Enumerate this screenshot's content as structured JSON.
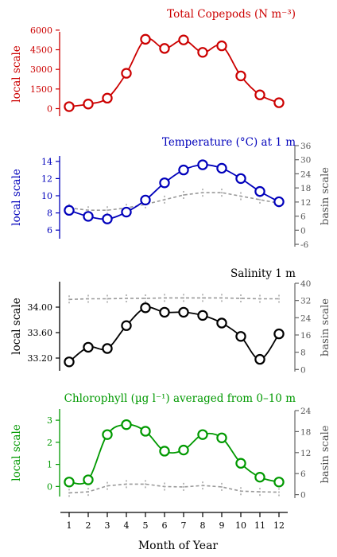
{
  "x_axis": {
    "label": "Month of Year",
    "ticks": [
      "1",
      "2",
      "3",
      "4",
      "5",
      "6",
      "7",
      "8",
      "9",
      "10",
      "11",
      "12"
    ]
  },
  "chart_data": [
    {
      "type": "line",
      "title": "Total Copepods (N m⁻³)",
      "color": "#cc0000",
      "ylabel": "local scale",
      "ylim": [
        -700,
        6600
      ],
      "y_ticks": [
        "0",
        "1500",
        "3000",
        "4500",
        "6000"
      ],
      "y_tick_values": [
        0,
        1500,
        3000,
        4500,
        6000
      ],
      "x": [
        1,
        2,
        3,
        4,
        5,
        6,
        7,
        8,
        9,
        10,
        11,
        12
      ],
      "series": [
        {
          "values": [
            150,
            350,
            800,
            2700,
            5300,
            4600,
            5250,
            4300,
            4800,
            2500,
            1050,
            450
          ]
        }
      ]
    },
    {
      "type": "line",
      "title": "Temperature (°C) at 1 m",
      "color": "#0000bb",
      "ylabel": "local scale",
      "ylabel2": "basin scale",
      "ylim": [
        5,
        15
      ],
      "y_ticks": [
        "6",
        "8",
        "10",
        "12",
        "14"
      ],
      "y_tick_values": [
        6,
        8,
        10,
        12,
        14
      ],
      "y2lim": [
        -7,
        36
      ],
      "y2_ticks": [
        "-6",
        "0",
        "6",
        "12",
        "18",
        "24",
        "30",
        "36"
      ],
      "y2_tick_values": [
        -6,
        0,
        6,
        12,
        18,
        24,
        30,
        36
      ],
      "x": [
        1,
        2,
        3,
        4,
        5,
        6,
        7,
        8,
        9,
        10,
        11,
        12
      ],
      "series": [
        {
          "values": [
            8.3,
            7.6,
            7.3,
            8.1,
            9.5,
            11.5,
            13.0,
            13.6,
            13.2,
            12.0,
            10.5,
            9.3
          ]
        },
        {
          "axis": "basin",
          "values": [
            9.5,
            8.5,
            8.5,
            9.5,
            11,
            13,
            15,
            16,
            16,
            14.5,
            13,
            11.5
          ]
        }
      ]
    },
    {
      "type": "line",
      "title": "Salinity 1 m",
      "color": "#000000",
      "ylabel": "local scale",
      "ylabel2": "basin scale",
      "ylim": [
        33.0,
        34.4
      ],
      "y_ticks": [
        "33.20",
        "33.60",
        "34.00"
      ],
      "y_tick_values": [
        33.2,
        33.6,
        34.0
      ],
      "y2lim": [
        -1,
        40
      ],
      "y2_ticks": [
        "0",
        "8",
        "16",
        "24",
        "32",
        "40"
      ],
      "y2_tick_values": [
        0,
        8,
        16,
        24,
        32,
        40
      ],
      "x": [
        1,
        2,
        3,
        4,
        5,
        6,
        7,
        8,
        9,
        10,
        11,
        12
      ],
      "series": [
        {
          "values": [
            33.14,
            33.37,
            33.35,
            33.71,
            33.99,
            33.92,
            33.92,
            33.87,
            33.75,
            33.54,
            33.18,
            33.58
          ]
        },
        {
          "axis": "basin",
          "values": [
            32.5,
            32.8,
            32.8,
            33.0,
            33.0,
            33.2,
            33.2,
            33.2,
            33.2,
            33.0,
            32.8,
            32.8
          ]
        }
      ]
    },
    {
      "type": "line",
      "title": "Chlorophyll (µg l⁻¹) averaged from 0–10 m",
      "color": "#009900",
      "ylabel": "local scale",
      "ylabel2": "basin scale",
      "ylim": [
        -0.6,
        3.4
      ],
      "y_ticks": [
        "0",
        "1",
        "2",
        "3"
      ],
      "y_tick_values": [
        0,
        1,
        2,
        3
      ],
      "y2lim": [
        -1,
        24
      ],
      "y2_ticks": [
        "0",
        "6",
        "12",
        "18",
        "24"
      ],
      "y2_tick_values": [
        0,
        6,
        12,
        18,
        24
      ],
      "x": [
        1,
        2,
        3,
        4,
        5,
        6,
        7,
        8,
        9,
        10,
        11,
        12
      ],
      "series": [
        {
          "values": [
            0.2,
            0.3,
            2.35,
            2.8,
            2.5,
            1.6,
            1.65,
            2.35,
            2.2,
            1.05,
            0.42,
            0.2
          ]
        },
        {
          "axis": "basin",
          "values": [
            0.5,
            0.8,
            2.5,
            3.0,
            3.0,
            2.3,
            2.2,
            2.6,
            2.2,
            1.0,
            0.8,
            0.7
          ]
        }
      ]
    }
  ]
}
